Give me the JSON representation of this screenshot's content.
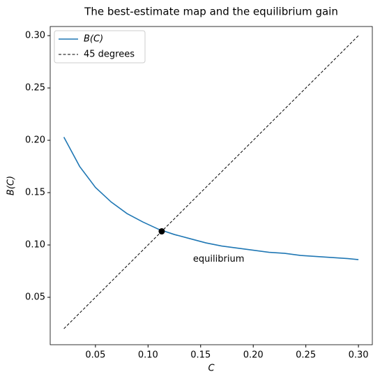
{
  "chart_data": {
    "type": "line",
    "title": "The best-estimate map and the equilibrium gain",
    "xlabel": "C",
    "ylabel": "B(C)",
    "x": [
      0.02,
      0.035,
      0.05,
      0.065,
      0.08,
      0.095,
      0.11,
      0.125,
      0.14,
      0.155,
      0.17,
      0.185,
      0.2,
      0.215,
      0.23,
      0.245,
      0.26,
      0.275,
      0.29,
      0.3
    ],
    "series": [
      {
        "name": "B(C)",
        "color": "#1f77b4",
        "style": "solid",
        "x": [
          0.02,
          0.035,
          0.05,
          0.065,
          0.08,
          0.095,
          0.11,
          0.125,
          0.14,
          0.155,
          0.17,
          0.185,
          0.2,
          0.215,
          0.23,
          0.245,
          0.26,
          0.275,
          0.29,
          0.3
        ],
        "values": [
          0.203,
          0.175,
          0.155,
          0.141,
          0.13,
          0.122,
          0.115,
          0.11,
          0.106,
          0.102,
          0.099,
          0.097,
          0.095,
          0.093,
          0.092,
          0.09,
          0.089,
          0.088,
          0.087,
          0.086
        ]
      },
      {
        "name": "45 degrees",
        "color": "#000000",
        "style": "dashed",
        "x": [
          0.02,
          0.3
        ],
        "values": [
          0.02,
          0.3
        ]
      }
    ],
    "point": {
      "x": 0.113,
      "y": 0.113,
      "color": "#000000",
      "label": "equilibrium"
    },
    "xlim": [
      0.007,
      0.3132
    ],
    "ylim": [
      0.0047,
      0.3087
    ],
    "xticks": [
      {
        "value": 0.05,
        "label": "0.05"
      },
      {
        "value": 0.1,
        "label": "0.10"
      },
      {
        "value": 0.15,
        "label": "0.15"
      },
      {
        "value": 0.2,
        "label": "0.20"
      },
      {
        "value": 0.25,
        "label": "0.25"
      },
      {
        "value": 0.3,
        "label": "0.30"
      }
    ],
    "yticks": [
      {
        "value": 0.05,
        "label": "0.05"
      },
      {
        "value": 0.1,
        "label": "0.10"
      },
      {
        "value": 0.15,
        "label": "0.15"
      },
      {
        "value": 0.2,
        "label": "0.20"
      },
      {
        "value": 0.25,
        "label": "0.25"
      },
      {
        "value": 0.3,
        "label": "0.30"
      }
    ],
    "legend": "upper left",
    "grid": false
  }
}
